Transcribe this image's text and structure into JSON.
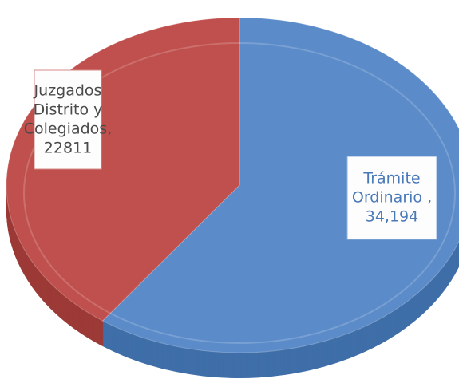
{
  "chart_data": {
    "type": "pie",
    "values": [
      34194,
      22811
    ],
    "value_labels": [
      "34,194",
      "22811"
    ],
    "label_lines": [
      [
        "Trámite",
        "Ordinario ,"
      ],
      [
        "Juzgados",
        "Distrito y",
        "Colegiados,"
      ]
    ],
    "colors": [
      "#5b8bc9",
      "#c0504d"
    ],
    "side_colors": [
      "#3f6ea8",
      "#9c3a37"
    ]
  }
}
